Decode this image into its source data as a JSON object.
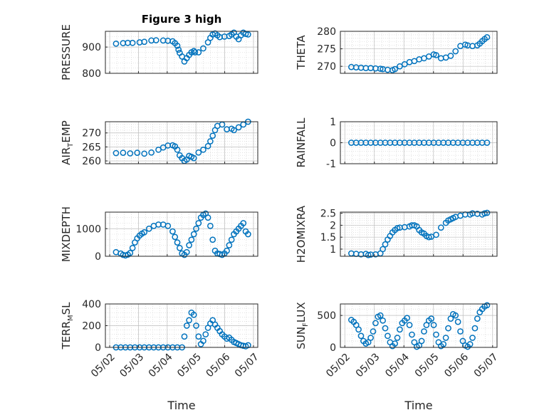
{
  "figure": {
    "x_ticks": [
      "05/02",
      "05/03",
      "05/04",
      "05/05",
      "05/06",
      "05/07"
    ],
    "marker_color": "#0072BD",
    "grid": "on (major + minor, dotted)"
  },
  "chart_data": [
    {
      "type": "scatter",
      "title": "Figure 3 high",
      "ylabel_main": "PRESSURE",
      "ylabel_sub": "",
      "xlabel": "",
      "ylim": [
        800,
        960
      ],
      "yticks": [
        800,
        900
      ],
      "series": [
        {
          "x": [
            0.0,
            0.3,
            0.5,
            0.7,
            1.0,
            1.2,
            1.5,
            1.7,
            2.0,
            2.2,
            2.4,
            2.5,
            2.6,
            2.65,
            2.7,
            2.8,
            2.9,
            3.0,
            3.1,
            3.2,
            3.3,
            3.35,
            3.5,
            3.7,
            3.9,
            4.0,
            4.1,
            4.2,
            4.3,
            4.4,
            4.6,
            4.8,
            4.9,
            5.0,
            5.1,
            5.2,
            5.3,
            5.4,
            5.5,
            5.6
          ],
          "y": [
            913,
            915,
            916,
            916,
            918,
            920,
            925,
            926,
            925,
            924,
            922,
            915,
            905,
            890,
            878,
            864,
            845,
            858,
            870,
            880,
            885,
            880,
            880,
            895,
            918,
            935,
            948,
            952,
            945,
            938,
            940,
            942,
            948,
            955,
            940,
            930,
            945,
            955,
            950,
            948
          ]
        }
      ]
    },
    {
      "type": "scatter",
      "title": "",
      "ylabel_main": "THETA",
      "ylabel_sub": "",
      "xlabel": "",
      "ylim": [
        268,
        280
      ],
      "yticks": [
        270,
        275,
        280
      ],
      "series": [
        {
          "x": [
            0.0,
            0.2,
            0.4,
            0.6,
            0.8,
            1.0,
            1.2,
            1.3,
            1.5,
            1.7,
            1.8,
            2.0,
            2.2,
            2.4,
            2.6,
            2.8,
            3.0,
            3.2,
            3.4,
            3.5,
            3.7,
            3.9,
            4.1,
            4.3,
            4.5,
            4.7,
            4.8,
            5.0,
            5.2,
            5.3,
            5.4,
            5.5,
            5.6
          ],
          "y": [
            269.8,
            269.7,
            269.6,
            269.5,
            269.5,
            269.4,
            269.3,
            269.2,
            269.0,
            268.9,
            269.2,
            270.0,
            270.6,
            271.2,
            271.5,
            272.0,
            272.3,
            272.8,
            273.4,
            273.2,
            272.3,
            272.5,
            273.0,
            274.3,
            275.8,
            276.2,
            276.0,
            275.8,
            276.0,
            276.5,
            277.2,
            277.8,
            278.3
          ]
        }
      ]
    },
    {
      "type": "scatter",
      "title": "",
      "ylabel_main": "AIR",
      "ylabel_sub": "T",
      "ylabel_tail": "EMP",
      "xlabel": "",
      "ylim": [
        259,
        274
      ],
      "yticks": [
        260,
        265,
        270
      ],
      "series": [
        {
          "x": [
            0.0,
            0.3,
            0.6,
            0.9,
            1.2,
            1.5,
            1.8,
            2.0,
            2.2,
            2.4,
            2.5,
            2.6,
            2.7,
            2.8,
            2.9,
            3.0,
            3.1,
            3.2,
            3.3,
            3.5,
            3.7,
            3.9,
            4.0,
            4.1,
            4.2,
            4.3,
            4.5,
            4.7,
            4.9,
            5.0,
            5.2,
            5.4,
            5.6
          ],
          "y": [
            262.8,
            262.9,
            262.7,
            262.9,
            262.6,
            263.0,
            264.0,
            264.8,
            265.5,
            265.6,
            265.2,
            264.0,
            262.0,
            261.0,
            260.0,
            260.5,
            261.8,
            261.5,
            261.0,
            263.0,
            264.0,
            265.3,
            267.0,
            269.0,
            271.0,
            272.5,
            273.0,
            271.3,
            271.5,
            271.0,
            272.0,
            273.0,
            274.0
          ]
        }
      ]
    },
    {
      "type": "scatter",
      "title": "",
      "ylabel_main": "RAINFALL",
      "ylabel_sub": "",
      "xlabel": "",
      "ylim": [
        -1,
        1
      ],
      "yticks": [
        -1,
        0,
        1
      ],
      "series": [
        {
          "x": [
            0.0,
            0.2,
            0.4,
            0.6,
            0.8,
            1.0,
            1.2,
            1.4,
            1.6,
            1.8,
            2.0,
            2.2,
            2.4,
            2.6,
            2.8,
            3.0,
            3.2,
            3.4,
            3.6,
            3.8,
            4.0,
            4.2,
            4.4,
            4.6,
            4.8,
            5.0,
            5.2,
            5.4,
            5.6
          ],
          "y": [
            0,
            0,
            0,
            0,
            0,
            0,
            0,
            0,
            0,
            0,
            0,
            0,
            0,
            0,
            0,
            0,
            0,
            0,
            0,
            0,
            0,
            0,
            0,
            0,
            0,
            0,
            0,
            0,
            0
          ]
        }
      ]
    },
    {
      "type": "scatter",
      "title": "",
      "ylabel_main": "MIXDEPTH",
      "ylabel_sub": "",
      "xlabel": "",
      "ylim": [
        0,
        1600
      ],
      "yticks": [
        0,
        1000
      ],
      "series": [
        {
          "x": [
            0.0,
            0.2,
            0.3,
            0.4,
            0.5,
            0.6,
            0.7,
            0.8,
            0.9,
            1.0,
            1.1,
            1.2,
            1.4,
            1.6,
            1.8,
            2.0,
            2.2,
            2.4,
            2.5,
            2.6,
            2.7,
            2.8,
            2.9,
            3.0,
            3.1,
            3.2,
            3.3,
            3.4,
            3.5,
            3.6,
            3.7,
            3.8,
            3.9,
            4.0,
            4.1,
            4.2,
            4.3,
            4.4,
            4.5,
            4.6,
            4.7,
            4.8,
            4.9,
            5.0,
            5.1,
            5.2,
            5.3,
            5.4,
            5.5,
            5.6
          ],
          "y": [
            150,
            100,
            50,
            30,
            60,
            120,
            300,
            500,
            650,
            750,
            820,
            870,
            1000,
            1100,
            1150,
            1150,
            1100,
            900,
            700,
            500,
            300,
            100,
            50,
            150,
            400,
            600,
            800,
            1000,
            1200,
            1400,
            1500,
            1550,
            1400,
            1100,
            600,
            200,
            100,
            80,
            50,
            100,
            200,
            400,
            600,
            800,
            900,
            1000,
            1100,
            1200,
            900,
            800
          ]
        }
      ]
    },
    {
      "type": "scatter",
      "title": "",
      "ylabel_main": "H2OMIXRA",
      "ylabel_sub": "",
      "xlabel": "",
      "ylim": [
        0.7,
        2.55
      ],
      "yticks": [
        1,
        1.5,
        2,
        2.5
      ],
      "series": [
        {
          "x": [
            0.0,
            0.2,
            0.4,
            0.6,
            0.7,
            0.8,
            1.0,
            1.2,
            1.3,
            1.4,
            1.5,
            1.6,
            1.7,
            1.8,
            1.9,
            2.0,
            2.2,
            2.4,
            2.5,
            2.6,
            2.7,
            2.8,
            2.9,
            3.0,
            3.1,
            3.2,
            3.3,
            3.5,
            3.7,
            3.9,
            4.0,
            4.1,
            4.2,
            4.3,
            4.5,
            4.7,
            4.9,
            5.0,
            5.2,
            5.4,
            5.5,
            5.6
          ],
          "y": [
            0.82,
            0.8,
            0.78,
            0.8,
            0.75,
            0.77,
            0.78,
            0.82,
            1.0,
            1.2,
            1.4,
            1.55,
            1.7,
            1.8,
            1.88,
            1.9,
            1.92,
            1.95,
            2.0,
            2.0,
            1.95,
            1.8,
            1.7,
            1.65,
            1.55,
            1.5,
            1.52,
            1.6,
            1.9,
            2.1,
            2.2,
            2.25,
            2.3,
            2.35,
            2.4,
            2.45,
            2.45,
            2.5,
            2.48,
            2.45,
            2.5,
            2.52
          ]
        }
      ]
    },
    {
      "type": "scatter",
      "title": "",
      "ylabel_main": "TERR",
      "ylabel_sub": "M",
      "ylabel_tail": "SL",
      "xlabel": "Time",
      "ylim": [
        0,
        400
      ],
      "yticks": [
        0,
        200,
        400
      ],
      "series": [
        {
          "x": [
            0.0,
            0.2,
            0.4,
            0.6,
            0.8,
            1.0,
            1.2,
            1.4,
            1.6,
            1.8,
            2.0,
            2.2,
            2.4,
            2.6,
            2.8,
            2.9,
            3.0,
            3.1,
            3.2,
            3.3,
            3.4,
            3.5,
            3.6,
            3.7,
            3.8,
            3.9,
            4.0,
            4.1,
            4.2,
            4.3,
            4.4,
            4.5,
            4.6,
            4.7,
            4.8,
            4.9,
            5.0,
            5.1,
            5.2,
            5.3,
            5.4,
            5.5,
            5.6
          ],
          "y": [
            0,
            0,
            0,
            0,
            0,
            0,
            0,
            0,
            0,
            0,
            0,
            0,
            0,
            0,
            0,
            100,
            200,
            250,
            320,
            300,
            200,
            100,
            30,
            60,
            120,
            180,
            220,
            250,
            210,
            180,
            150,
            120,
            100,
            80,
            90,
            70,
            50,
            40,
            30,
            20,
            15,
            10,
            20
          ]
        }
      ]
    },
    {
      "type": "scatter",
      "title": "",
      "ylabel_main": "SUN",
      "ylabel_sub": "F",
      "ylabel_tail": "LUX",
      "xlabel": "Time",
      "ylim": [
        0,
        680
      ],
      "yticks": [
        0,
        500
      ],
      "series": [
        {
          "x": [
            0.0,
            0.1,
            0.2,
            0.3,
            0.4,
            0.5,
            0.6,
            0.7,
            0.8,
            0.9,
            1.0,
            1.1,
            1.2,
            1.3,
            1.4,
            1.5,
            1.6,
            1.7,
            1.8,
            1.9,
            2.0,
            2.1,
            2.2,
            2.3,
            2.4,
            2.5,
            2.6,
            2.7,
            2.8,
            2.9,
            3.0,
            3.1,
            3.2,
            3.3,
            3.4,
            3.5,
            3.6,
            3.7,
            3.8,
            3.9,
            4.0,
            4.1,
            4.2,
            4.3,
            4.4,
            4.5,
            4.6,
            4.7,
            4.8,
            4.9,
            5.0,
            5.1,
            5.2,
            5.3,
            5.4,
            5.5,
            5.6
          ],
          "y": [
            430,
            400,
            350,
            280,
            180,
            100,
            60,
            80,
            150,
            250,
            380,
            480,
            500,
            420,
            300,
            180,
            80,
            20,
            60,
            150,
            280,
            380,
            420,
            460,
            350,
            200,
            80,
            10,
            30,
            100,
            250,
            350,
            420,
            450,
            350,
            200,
            80,
            20,
            50,
            150,
            300,
            450,
            520,
            500,
            400,
            250,
            100,
            30,
            10,
            50,
            150,
            300,
            450,
            550,
            600,
            640,
            660
          ]
        }
      ]
    }
  ]
}
